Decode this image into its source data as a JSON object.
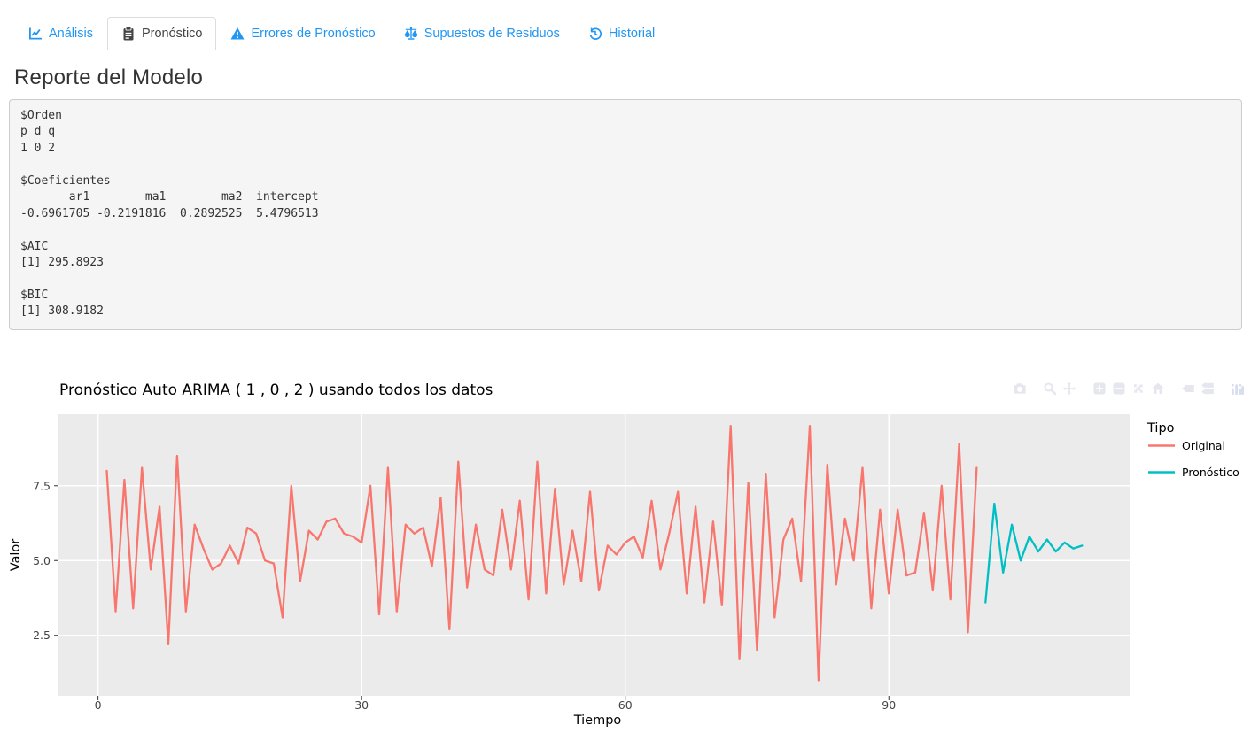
{
  "theme": {
    "link_blue": "#2196F3",
    "active_tab_text": "#444444",
    "modebar_icon": "#e6e7ee",
    "modebar_logo": "#d8ddee"
  },
  "tabs": [
    {
      "label": "Análisis",
      "icon": "chart-line-icon",
      "active": false
    },
    {
      "label": "Pronóstico",
      "icon": "clipboard-icon",
      "active": true
    },
    {
      "label": "Errores de Pronóstico",
      "icon": "warning-icon",
      "active": false
    },
    {
      "label": "Supuestos de Residuos",
      "icon": "balance-scale-icon",
      "active": false
    },
    {
      "label": "Historial",
      "icon": "history-icon",
      "active": false
    }
  ],
  "report": {
    "title": "Reporte del Modelo",
    "output_lines": [
      "$Orden",
      "p d q ",
      "1 0 2 ",
      "",
      "$Coeficientes",
      "       ar1        ma1        ma2  intercept ",
      "-0.6961705 -0.2191816  0.2892525  5.4796513 ",
      "",
      "$AIC",
      "[1] 295.8923",
      "",
      "$BIC",
      "[1] 308.9182"
    ]
  },
  "modebar": {
    "groups": [
      [
        "camera"
      ],
      [
        "zoom",
        "pan"
      ],
      [
        "zoom-in",
        "zoom-out",
        "autoscale",
        "reset-axes"
      ],
      [
        "hover-closest",
        "hover-compare"
      ],
      [
        "plotly-logo"
      ]
    ]
  },
  "chart_data": {
    "type": "line",
    "title": "Pronóstico Auto ARIMA ( 1 , 0 , 2 ) usando todos los datos",
    "xlabel": "Tiempo",
    "ylabel": "Valor",
    "legend_title": "Tipo",
    "legend_position": "right",
    "grid": true,
    "plot_background": "#EBEBEB",
    "gridline_color": "#ffffff",
    "xlim": [
      -4.5,
      117.4
    ],
    "ylim": [
      0.48,
      9.89
    ],
    "xticks": [
      0,
      30,
      60,
      90
    ],
    "yticks": [
      2.5,
      5.0,
      7.5
    ],
    "series": [
      {
        "name": "Original",
        "color": "#F8766D",
        "x": [
          1,
          2,
          3,
          4,
          5,
          6,
          7,
          8,
          9,
          10,
          11,
          12,
          13,
          14,
          15,
          16,
          17,
          18,
          19,
          20,
          21,
          22,
          23,
          24,
          25,
          26,
          27,
          28,
          29,
          30,
          31,
          32,
          33,
          34,
          35,
          36,
          37,
          38,
          39,
          40,
          41,
          42,
          43,
          44,
          45,
          46,
          47,
          48,
          49,
          50,
          51,
          52,
          53,
          54,
          55,
          56,
          57,
          58,
          59,
          60,
          61,
          62,
          63,
          64,
          65,
          66,
          67,
          68,
          69,
          70,
          71,
          72,
          73,
          74,
          75,
          76,
          77,
          78,
          79,
          80,
          81,
          82,
          83,
          84,
          85,
          86,
          87,
          88,
          89,
          90,
          91,
          92,
          93,
          94,
          95,
          96,
          97,
          98,
          99,
          100
        ],
        "y": [
          8.0,
          3.3,
          7.7,
          3.4,
          8.1,
          4.7,
          6.8,
          2.2,
          8.5,
          3.3,
          6.2,
          5.4,
          4.7,
          4.9,
          5.5,
          4.9,
          6.1,
          5.9,
          5.0,
          4.9,
          3.1,
          7.5,
          4.3,
          6.0,
          5.7,
          6.3,
          6.4,
          5.9,
          5.8,
          5.6,
          7.5,
          3.2,
          8.1,
          3.3,
          6.2,
          5.9,
          6.1,
          4.8,
          7.1,
          2.7,
          8.3,
          4.1,
          6.2,
          4.7,
          4.5,
          6.7,
          4.7,
          7.0,
          3.7,
          8.3,
          3.9,
          7.4,
          4.2,
          6.0,
          4.3,
          7.3,
          4.0,
          5.5,
          5.2,
          5.6,
          5.8,
          5.1,
          7.0,
          4.7,
          5.9,
          7.3,
          3.9,
          6.8,
          3.6,
          6.3,
          3.5,
          9.5,
          1.7,
          7.6,
          2.0,
          7.9,
          3.1,
          5.7,
          6.4,
          4.3,
          9.5,
          1.0,
          8.2,
          4.2,
          6.4,
          5.0,
          8.1,
          3.4,
          6.7,
          3.9,
          6.7,
          4.5,
          4.6,
          6.6,
          4.0,
          7.5,
          3.7,
          8.9,
          2.6,
          8.1
        ]
      },
      {
        "name": "Pronóstico",
        "color": "#00BFC4",
        "x": [
          101,
          102,
          103,
          104,
          105,
          106,
          107,
          108,
          109,
          110,
          111,
          112
        ],
        "y": [
          3.6,
          6.9,
          4.6,
          6.2,
          5.0,
          5.8,
          5.3,
          5.7,
          5.3,
          5.6,
          5.4,
          5.5
        ]
      }
    ]
  }
}
